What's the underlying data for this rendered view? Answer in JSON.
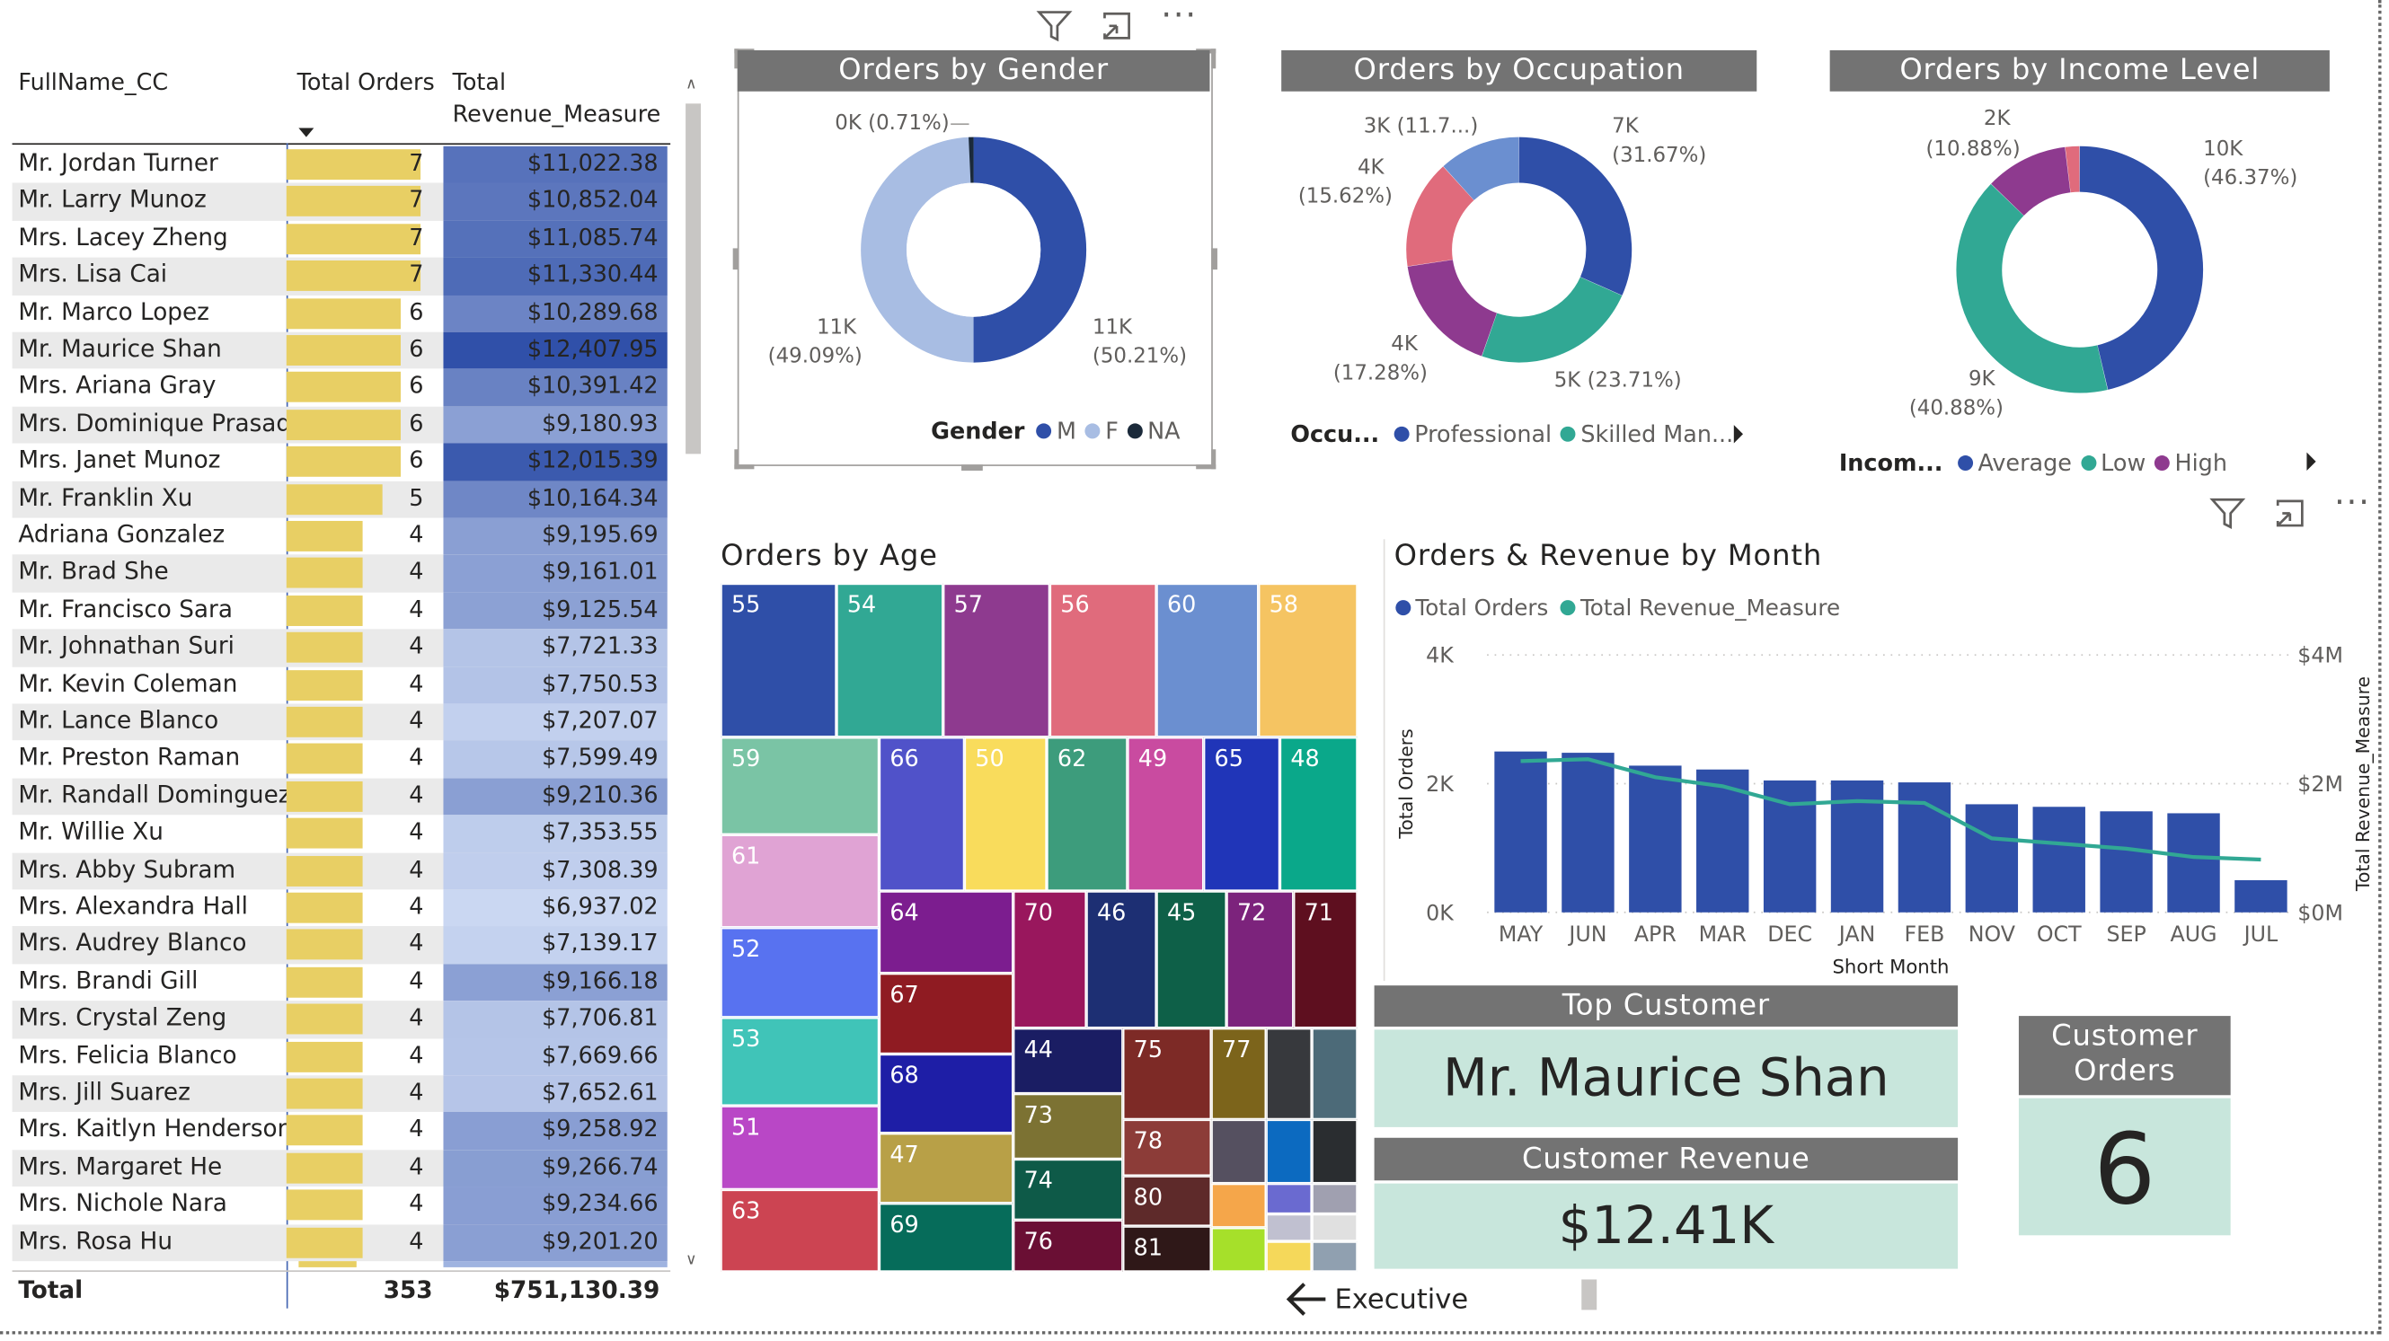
{
  "table": {
    "headers": {
      "name": "FullName_CC",
      "orders": "Total Orders",
      "revenue_line1": "Total",
      "revenue_line2": "Revenue_Measure"
    },
    "rows": [
      {
        "name": "Mr. Jordan Turner",
        "orders": 7,
        "revenue": "$11,022.38",
        "rev_value": 11022.38
      },
      {
        "name": "Mr. Larry Munoz",
        "orders": 7,
        "revenue": "$10,852.04",
        "rev_value": 10852.04
      },
      {
        "name": "Mrs. Lacey Zheng",
        "orders": 7,
        "revenue": "$11,085.74",
        "rev_value": 11085.74
      },
      {
        "name": "Mrs. Lisa Cai",
        "orders": 7,
        "revenue": "$11,330.44",
        "rev_value": 11330.44
      },
      {
        "name": "Mr. Marco Lopez",
        "orders": 6,
        "revenue": "$10,289.68",
        "rev_value": 10289.68
      },
      {
        "name": "Mr. Maurice Shan",
        "orders": 6,
        "revenue": "$12,407.95",
        "rev_value": 12407.95
      },
      {
        "name": "Mrs. Ariana Gray",
        "orders": 6,
        "revenue": "$10,391.42",
        "rev_value": 10391.42
      },
      {
        "name": "Mrs. Dominique Prasad",
        "orders": 6,
        "revenue": "$9,180.93",
        "rev_value": 9180.93
      },
      {
        "name": "Mrs. Janet Munoz",
        "orders": 6,
        "revenue": "$12,015.39",
        "rev_value": 12015.39
      },
      {
        "name": "Mr. Franklin Xu",
        "orders": 5,
        "revenue": "$10,164.34",
        "rev_value": 10164.34
      },
      {
        "name": "Adriana Gonzalez",
        "orders": 4,
        "revenue": "$9,195.69",
        "rev_value": 9195.69
      },
      {
        "name": "Mr. Brad She",
        "orders": 4,
        "revenue": "$9,161.01",
        "rev_value": 9161.01
      },
      {
        "name": "Mr. Francisco Sara",
        "orders": 4,
        "revenue": "$9,125.54",
        "rev_value": 9125.54
      },
      {
        "name": "Mr. Johnathan Suri",
        "orders": 4,
        "revenue": "$7,721.33",
        "rev_value": 7721.33
      },
      {
        "name": "Mr. Kevin Coleman",
        "orders": 4,
        "revenue": "$7,750.53",
        "rev_value": 7750.53
      },
      {
        "name": "Mr. Lance Blanco",
        "orders": 4,
        "revenue": "$7,207.07",
        "rev_value": 7207.07
      },
      {
        "name": "Mr. Preston Raman",
        "orders": 4,
        "revenue": "$7,599.49",
        "rev_value": 7599.49
      },
      {
        "name": "Mr. Randall Dominguez",
        "orders": 4,
        "revenue": "$9,210.36",
        "rev_value": 9210.36
      },
      {
        "name": "Mr. Willie Xu",
        "orders": 4,
        "revenue": "$7,353.55",
        "rev_value": 7353.55
      },
      {
        "name": "Mrs. Abby Subram",
        "orders": 4,
        "revenue": "$7,308.39",
        "rev_value": 7308.39
      },
      {
        "name": "Mrs. Alexandra Hall",
        "orders": 4,
        "revenue": "$6,937.02",
        "rev_value": 6937.02
      },
      {
        "name": "Mrs. Audrey Blanco",
        "orders": 4,
        "revenue": "$7,139.17",
        "rev_value": 7139.17
      },
      {
        "name": "Mrs. Brandi Gill",
        "orders": 4,
        "revenue": "$9,166.18",
        "rev_value": 9166.18
      },
      {
        "name": "Mrs. Crystal Zeng",
        "orders": 4,
        "revenue": "$7,706.81",
        "rev_value": 7706.81
      },
      {
        "name": "Mrs. Felicia Blanco",
        "orders": 4,
        "revenue": "$7,669.66",
        "rev_value": 7669.66
      },
      {
        "name": "Mrs. Jill Suarez",
        "orders": 4,
        "revenue": "$7,652.61",
        "rev_value": 7652.61
      },
      {
        "name": "Mrs. Kaitlyn Henderson",
        "orders": 4,
        "revenue": "$9,258.92",
        "rev_value": 9258.92
      },
      {
        "name": "Mrs. Margaret He",
        "orders": 4,
        "revenue": "$9,266.74",
        "rev_value": 9266.74
      },
      {
        "name": "Mrs. Nichole Nara",
        "orders": 4,
        "revenue": "$9,234.66",
        "rev_value": 9234.66
      },
      {
        "name": "Mrs. Rosa Hu",
        "orders": 4,
        "revenue": "$9,201.20",
        "rev_value": 9201.2
      }
    ],
    "total": {
      "label": "Total",
      "orders": "353",
      "revenue": "$751,130.39"
    }
  },
  "gender": {
    "title": "Orders by Gender",
    "labels": {
      "na": "0K (0.71%)",
      "f_val": "11K",
      "f_pct": "(49.09%)",
      "m_val": "11K",
      "m_pct": "(50.21%)"
    },
    "legend_title": "Gender",
    "legend": [
      {
        "name": "M",
        "color": "#2f4fa8"
      },
      {
        "name": "F",
        "color": "#a8bde3"
      },
      {
        "name": "NA",
        "color": "#1b2a3a"
      }
    ]
  },
  "occupation": {
    "title": "Orders by Occupation",
    "labels": {
      "a": "3K (11.7...)",
      "b_val": "7K",
      "b_pct": "(31.67%)",
      "c_val": "4K",
      "c_pct": "(15.62%)",
      "d_val": "4K",
      "d_pct": "(17.28%)",
      "e": "5K (23.71%)"
    },
    "legend_title": "Occu...",
    "legend": [
      {
        "name": "Professional",
        "color": "#2f4fa8"
      },
      {
        "name": "Skilled Man...",
        "color": "#31a894"
      }
    ]
  },
  "income": {
    "title": "Orders by Income Level",
    "labels": {
      "a_val": "2K",
      "a_pct": "(10.88%)",
      "b_val": "10K",
      "b_pct": "(46.37%)",
      "c_val": "9K",
      "c_pct": "(40.88%)"
    },
    "legend_title": "Incom...",
    "legend": [
      {
        "name": "Average",
        "color": "#2f4fa8"
      },
      {
        "name": "Low",
        "color": "#31a894"
      },
      {
        "name": "High",
        "color": "#8e3a8f"
      }
    ]
  },
  "age": {
    "title": "Orders by Age",
    "tiles": [
      "55",
      "54",
      "57",
      "56",
      "60",
      "58",
      "59",
      "66",
      "50",
      "62",
      "49",
      "65",
      "48",
      "61",
      "64",
      "70",
      "46",
      "45",
      "72",
      "71",
      "52",
      "67",
      "44",
      "75",
      "77",
      "53",
      "68",
      "73",
      "51",
      "78",
      "47",
      "74",
      "80",
      "63",
      "69",
      "76",
      "81"
    ]
  },
  "chart_data": {
    "type": "bar",
    "title": "Orders & Revenue by Month",
    "xlabel": "Short Month",
    "ylabel": "Total Orders",
    "ylabel_right": "Total Revenue_Measure",
    "categories": [
      "MAY",
      "JUN",
      "APR",
      "MAR",
      "DEC",
      "JAN",
      "FEB",
      "NOV",
      "OCT",
      "SEP",
      "AUG",
      "JUL"
    ],
    "series": [
      {
        "name": "Total Orders",
        "type": "bar",
        "color": "#2f4fa8",
        "values": [
          2500,
          2480,
          2280,
          2220,
          2050,
          2050,
          2020,
          1680,
          1640,
          1570,
          1540,
          500
        ]
      },
      {
        "name": "Total Revenue_Measure",
        "type": "line",
        "color": "#31a894",
        "values": [
          2350000,
          2380000,
          2100000,
          1960000,
          1680000,
          1730000,
          1700000,
          1150000,
          1070000,
          990000,
          860000,
          820000
        ]
      }
    ],
    "ylim": [
      0,
      4000
    ],
    "y_ticks": [
      "0K",
      "2K",
      "4K"
    ],
    "ylim_right": [
      0,
      4000000
    ],
    "y_ticks_right": [
      "$0M",
      "$2M",
      "$4M"
    ],
    "legend_position": "top-left"
  },
  "cards": {
    "top_customer": {
      "label": "Top Customer",
      "value": "Mr. Maurice Shan"
    },
    "customer_revenue": {
      "label": "Customer Revenue",
      "value": "$12.41K"
    },
    "customer_orders": {
      "label_line1": "Customer",
      "label_line2": "Orders",
      "value": "6"
    }
  },
  "nav": {
    "back_label": "Executive"
  },
  "icons": [
    "filter-icon",
    "focus-mode-icon",
    "more-options-icon",
    "sort-descending-icon",
    "back-arrow-icon"
  ]
}
